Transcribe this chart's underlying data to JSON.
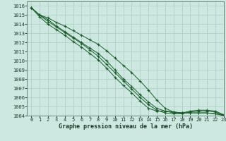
{
  "title": "Graphe pression niveau de la mer (hPa)",
  "background_color": "#cce8e0",
  "grid_color": "#aaccc4",
  "line_color": "#1a5c2a",
  "x_labels": [
    "0",
    "1",
    "2",
    "3",
    "4",
    "5",
    "6",
    "7",
    "8",
    "9",
    "10",
    "11",
    "12",
    "13",
    "14",
    "15",
    "16",
    "17",
    "18",
    "19",
    "20",
    "21",
    "22",
    "23"
  ],
  "xlim": [
    -0.5,
    23
  ],
  "ylim": [
    1004,
    1016.5
  ],
  "yticks": [
    1004,
    1005,
    1006,
    1007,
    1008,
    1009,
    1010,
    1011,
    1012,
    1013,
    1014,
    1015,
    1016
  ],
  "series": [
    [
      1015.8,
      1015.0,
      1014.7,
      1014.2,
      1013.8,
      1013.3,
      1012.8,
      1012.3,
      1011.8,
      1011.1,
      1010.3,
      1009.5,
      1008.7,
      1007.8,
      1006.8,
      1005.7,
      1004.8,
      1004.4,
      1004.3,
      1004.5,
      1004.6,
      1004.6,
      1004.5,
      1004.1
    ],
    [
      1015.8,
      1015.0,
      1014.5,
      1013.8,
      1013.2,
      1012.6,
      1012.0,
      1011.4,
      1010.8,
      1010.0,
      1009.0,
      1008.0,
      1007.2,
      1006.3,
      1005.5,
      1004.8,
      1004.5,
      1004.3,
      1004.3,
      1004.3,
      1004.3,
      1004.3,
      1004.2,
      1004.1
    ],
    [
      1015.8,
      1015.0,
      1014.3,
      1013.7,
      1013.1,
      1012.5,
      1011.9,
      1011.2,
      1010.5,
      1009.6,
      1008.7,
      1007.8,
      1006.9,
      1006.0,
      1005.2,
      1004.6,
      1004.3,
      1004.2,
      1004.2,
      1004.4,
      1004.5,
      1004.5,
      1004.4,
      1004.0
    ],
    [
      1015.8,
      1014.8,
      1014.0,
      1013.4,
      1012.8,
      1012.1,
      1011.5,
      1010.8,
      1010.1,
      1009.2,
      1008.2,
      1007.3,
      1006.5,
      1005.6,
      1004.8,
      1004.5,
      1004.5,
      1004.4,
      1004.3,
      1004.3,
      1004.3,
      1004.3,
      1004.2,
      1004.0
    ]
  ]
}
